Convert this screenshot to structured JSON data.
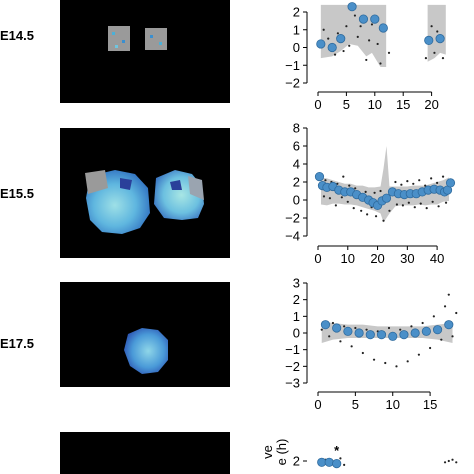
{
  "rows": [
    {
      "label": "E14.5"
    },
    {
      "label": "E15.5"
    },
    {
      "label": "E17.5"
    },
    {
      "label": ""
    }
  ],
  "colors": {
    "background": "#ffffff",
    "image_background": "#000000",
    "band": "#c8c8c8",
    "point": "#4a8fc8",
    "point_edge": "#2f6b9e",
    "scatter_dot": "#222222"
  },
  "chart_data": [
    {
      "type": "scatter",
      "title": "",
      "xlabel": "",
      "ylabel": "",
      "xlim": [
        0,
        25
      ],
      "ylim": [
        -2,
        2
      ],
      "xticks": [
        "0",
        "5",
        "10",
        "15",
        "20"
      ],
      "yticks": [
        "2",
        "1",
        "0",
        "−1",
        "−2"
      ],
      "band": [
        [
          0.5,
          -0.6,
          2.4
        ],
        [
          2.5,
          -0.5,
          2.4
        ],
        [
          4.0,
          -0.2,
          2.4
        ],
        [
          5.5,
          0.2,
          2.4
        ],
        [
          7.0,
          0.1,
          2.4
        ],
        [
          8.5,
          -0.5,
          2.4
        ],
        [
          9.5,
          -0.3,
          2.4
        ],
        [
          11.0,
          -1.1,
          2.4
        ],
        [
          12.0,
          -1.1,
          2.4
        ],
        [
          19.3,
          -0.8,
          2.4
        ],
        [
          20.5,
          -0.6,
          2.4
        ],
        [
          21.5,
          -0.3,
          2.4
        ],
        [
          22.5,
          -0.4,
          2.4
        ]
      ],
      "means": [
        [
          0.5,
          0.2
        ],
        [
          2.5,
          0.0
        ],
        [
          4.0,
          0.5
        ],
        [
          6.0,
          2.3
        ],
        [
          8.0,
          1.6
        ],
        [
          10.0,
          1.6
        ],
        [
          11.5,
          1.1
        ],
        [
          19.5,
          0.4
        ],
        [
          21.5,
          0.5
        ]
      ],
      "scatter": [
        [
          1.0,
          1.0
        ],
        [
          1.8,
          0.5
        ],
        [
          3.0,
          -0.4
        ],
        [
          3.5,
          0.8
        ],
        [
          4.5,
          -0.2
        ],
        [
          5.0,
          1.2
        ],
        [
          5.5,
          0.1
        ],
        [
          6.5,
          1.8
        ],
        [
          7.0,
          0.6
        ],
        [
          7.5,
          1.2
        ],
        [
          8.5,
          -0.7
        ],
        [
          9.0,
          0.4
        ],
        [
          9.5,
          1.3
        ],
        [
          10.5,
          0.2
        ],
        [
          11.0,
          -0.9
        ],
        [
          12.5,
          -0.3
        ],
        [
          19.0,
          -0.6
        ],
        [
          20.0,
          1.2
        ],
        [
          20.5,
          -0.3
        ],
        [
          21.0,
          0.9
        ],
        [
          22.0,
          -0.6
        ]
      ]
    },
    {
      "type": "scatter",
      "title": "",
      "xlabel": "",
      "ylabel": "",
      "xlim": [
        0,
        45
      ],
      "ylim": [
        -4,
        8
      ],
      "xticks": [
        "0",
        "10",
        "20",
        "30",
        "40"
      ],
      "yticks": [
        "8",
        "6",
        "4",
        "2",
        "0",
        "−2",
        "−4"
      ],
      "band": [
        [
          1,
          -0.5,
          2.5
        ],
        [
          3,
          -0.6,
          2.4
        ],
        [
          5,
          -0.4,
          2.2
        ],
        [
          7,
          -0.4,
          2.0
        ],
        [
          9,
          -0.5,
          1.8
        ],
        [
          11,
          -0.5,
          1.8
        ],
        [
          13,
          -0.6,
          1.6
        ],
        [
          15,
          -0.8,
          1.6
        ],
        [
          17,
          -1.0,
          1.4
        ],
        [
          19,
          -1.2,
          1.4
        ],
        [
          21,
          -1.5,
          1.5
        ],
        [
          22,
          -2.5,
          3.5
        ],
        [
          23,
          -2.0,
          6.0
        ],
        [
          24,
          -1.5,
          1.5
        ],
        [
          26,
          -0.7,
          1.5
        ],
        [
          28,
          -0.6,
          1.5
        ],
        [
          30,
          -0.6,
          1.5
        ],
        [
          32,
          -0.6,
          1.6
        ],
        [
          34,
          -0.5,
          1.6
        ],
        [
          36,
          -0.6,
          1.6
        ],
        [
          38,
          -0.5,
          1.8
        ],
        [
          40,
          -0.5,
          2.0
        ],
        [
          42,
          -0.2,
          2.2
        ],
        [
          44,
          -0.1,
          2.5
        ]
      ],
      "means": [
        [
          0.5,
          2.6
        ],
        [
          1.5,
          1.6
        ],
        [
          3,
          1.4
        ],
        [
          5,
          1.5
        ],
        [
          7,
          1.1
        ],
        [
          9,
          0.9
        ],
        [
          11,
          0.9
        ],
        [
          13,
          0.6
        ],
        [
          15,
          0.3
        ],
        [
          17,
          0.0
        ],
        [
          18.5,
          -0.3
        ],
        [
          20,
          -0.6
        ],
        [
          21.5,
          -0.1
        ],
        [
          23,
          0.2
        ],
        [
          25,
          0.9
        ],
        [
          27,
          0.7
        ],
        [
          29,
          0.6
        ],
        [
          31,
          0.7
        ],
        [
          33,
          0.7
        ],
        [
          35,
          0.9
        ],
        [
          37,
          1.1
        ],
        [
          39,
          1.2
        ],
        [
          41,
          1.1
        ],
        [
          42.5,
          0.9
        ],
        [
          43.5,
          1.1
        ],
        [
          44.5,
          1.9
        ]
      ],
      "scatter": [
        [
          1,
          2.8
        ],
        [
          2,
          0.4
        ],
        [
          2.5,
          2.2
        ],
        [
          4,
          0.2
        ],
        [
          4.5,
          2.0
        ],
        [
          6,
          -0.6
        ],
        [
          6.5,
          1.8
        ],
        [
          8,
          0.3
        ],
        [
          8.5,
          2.6
        ],
        [
          10,
          -0.2
        ],
        [
          10.5,
          1.6
        ],
        [
          12,
          -0.9
        ],
        [
          12.5,
          1.3
        ],
        [
          14,
          0.2
        ],
        [
          14.5,
          -1.2
        ],
        [
          16,
          0.9
        ],
        [
          16.5,
          -1.6
        ],
        [
          18,
          -0.8
        ],
        [
          19,
          0.8
        ],
        [
          19.5,
          -1.8
        ],
        [
          21,
          1.0
        ],
        [
          22,
          -2.3
        ],
        [
          24,
          -1.2
        ],
        [
          26,
          2.0
        ],
        [
          26.5,
          -0.5
        ],
        [
          28,
          1.7
        ],
        [
          28.5,
          -0.6
        ],
        [
          30,
          2.1
        ],
        [
          30.5,
          -0.3
        ],
        [
          32,
          1.8
        ],
        [
          32.5,
          -0.8
        ],
        [
          34,
          2.2
        ],
        [
          34.5,
          -0.4
        ],
        [
          36,
          1.6
        ],
        [
          36.5,
          -0.9
        ],
        [
          38,
          2.4
        ],
        [
          38.5,
          -0.2
        ],
        [
          40,
          1.9
        ],
        [
          40.5,
          -0.7
        ],
        [
          42,
          2.6
        ],
        [
          43,
          -0.3
        ],
        [
          44,
          2.2
        ]
      ]
    },
    {
      "type": "scatter",
      "title": "",
      "xlabel": "",
      "ylabel": "",
      "xlim": [
        0,
        19
      ],
      "ylim": [
        -3,
        3
      ],
      "xticks": [
        "0",
        "5",
        "10",
        "15"
      ],
      "yticks": [
        "3",
        "2",
        "1",
        "0",
        "−1",
        "−2",
        "−3"
      ],
      "band": [
        [
          0.5,
          -0.6,
          0.7
        ],
        [
          2,
          -0.4,
          0.6
        ],
        [
          4,
          -0.3,
          0.5
        ],
        [
          6,
          -0.3,
          0.5
        ],
        [
          8,
          -0.3,
          0.4
        ],
        [
          10,
          -0.3,
          0.4
        ],
        [
          12,
          -0.3,
          0.4
        ],
        [
          14,
          -0.3,
          0.4
        ],
        [
          16,
          -0.4,
          0.5
        ],
        [
          18,
          -0.6,
          0.6
        ]
      ],
      "means": [
        [
          1,
          0.5
        ],
        [
          2.5,
          0.3
        ],
        [
          4,
          0.1
        ],
        [
          5.5,
          0.0
        ],
        [
          7,
          -0.1
        ],
        [
          8.5,
          -0.1
        ],
        [
          10,
          -0.2
        ],
        [
          11.5,
          -0.1
        ],
        [
          13,
          0.0
        ],
        [
          14.5,
          0.1
        ],
        [
          16,
          0.2
        ],
        [
          17.5,
          0.5
        ]
      ],
      "scatter": [
        [
          0.5,
          0.2
        ],
        [
          1.5,
          -0.2
        ],
        [
          2,
          0.6
        ],
        [
          3,
          -0.5
        ],
        [
          3.5,
          0.4
        ],
        [
          4.5,
          -0.8
        ],
        [
          5,
          0.3
        ],
        [
          6,
          -1.2
        ],
        [
          6.5,
          0.2
        ],
        [
          7.5,
          -1.6
        ],
        [
          8,
          0.1
        ],
        [
          9,
          -1.8
        ],
        [
          9.5,
          0.3
        ],
        [
          10.5,
          -2.0
        ],
        [
          11,
          0.2
        ],
        [
          12,
          -1.7
        ],
        [
          12.5,
          0.4
        ],
        [
          13.5,
          -1.3
        ],
        [
          14,
          0.6
        ],
        [
          15,
          -0.9
        ],
        [
          15.5,
          1.0
        ],
        [
          16.5,
          -0.4
        ],
        [
          17,
          1.6
        ],
        [
          17.5,
          2.3
        ],
        [
          18,
          -0.2
        ],
        [
          18.5,
          1.2
        ]
      ]
    },
    {
      "type": "scatter",
      "title": "",
      "xlabel": "",
      "ylabel": "ve\ne (h)",
      "xlim": [
        0,
        19
      ],
      "ylim": [
        1,
        3
      ],
      "xticks": [],
      "yticks": [
        "2"
      ],
      "annotation": "*",
      "band": [],
      "means": [
        [
          0.5,
          1.9
        ],
        [
          1.5,
          1.9
        ],
        [
          2.5,
          1.8
        ]
      ],
      "scatter": [
        [
          1,
          2.1
        ],
        [
          3,
          2.2
        ],
        [
          3.5,
          1.7
        ],
        [
          17,
          1.9
        ],
        [
          17.5,
          2.0
        ],
        [
          18,
          2.1
        ],
        [
          18.5,
          1.9
        ]
      ]
    }
  ]
}
